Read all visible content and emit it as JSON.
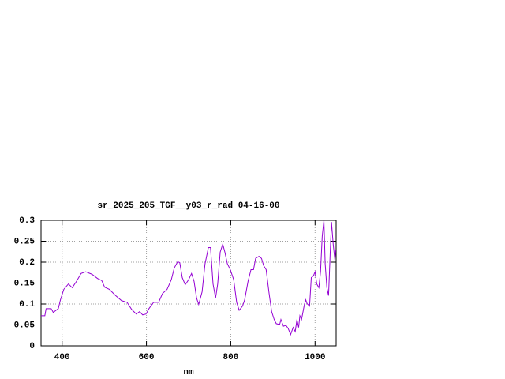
{
  "chart_data": {
    "type": "line",
    "title": "sr_2025_205_TGF__y03_r_rad 04-16-00",
    "x_label": "nm",
    "xlim": [
      350,
      1050
    ],
    "xticks": [
      400,
      600,
      800,
      1000
    ],
    "ylim": [
      0,
      0.3
    ],
    "yticks": [
      0,
      0.05,
      0.1,
      0.15,
      0.2,
      0.25,
      0.3
    ],
    "grid": true,
    "series": [
      {
        "color": "#9400d3",
        "x": [
          350,
          359,
          362,
          374,
          379,
          391,
          396,
          404,
          415,
          424,
          434,
          445,
          456,
          471,
          484,
          494,
          501,
          512,
          527,
          541,
          554,
          565,
          576,
          584,
          591,
          599,
          606,
          617,
          629,
          638,
          649,
          659,
          666,
          674,
          679,
          685,
          692,
          700,
          707,
          713,
          719,
          724,
          732,
          739,
          747,
          752,
          758,
          764,
          769,
          775,
          781,
          786,
          792,
          799,
          807,
          814,
          820,
          828,
          833,
          841,
          848,
          854,
          859,
          867,
          873,
          878,
          884,
          891,
          897,
          903,
          908,
          916,
          919,
          925,
          931,
          936,
          942,
          948,
          953,
          957,
          961,
          964,
          968,
          974,
          978,
          981,
          987,
          991,
          996,
          1000,
          1004,
          1009,
          1013,
          1017,
          1021,
          1024,
          1028,
          1032,
          1036,
          1039,
          1043,
          1047,
          1049
        ],
        "values": [
          0.072,
          0.072,
          0.089,
          0.089,
          0.08,
          0.089,
          0.11,
          0.135,
          0.148,
          0.139,
          0.154,
          0.173,
          0.177,
          0.171,
          0.161,
          0.156,
          0.14,
          0.135,
          0.12,
          0.108,
          0.104,
          0.087,
          0.076,
          0.082,
          0.074,
          0.076,
          0.089,
          0.104,
          0.104,
          0.125,
          0.135,
          0.158,
          0.186,
          0.201,
          0.199,
          0.163,
          0.146,
          0.158,
          0.173,
          0.154,
          0.114,
          0.099,
          0.129,
          0.196,
          0.235,
          0.235,
          0.148,
          0.114,
          0.148,
          0.224,
          0.243,
          0.224,
          0.196,
          0.182,
          0.158,
          0.104,
          0.085,
          0.095,
          0.11,
          0.154,
          0.182,
          0.182,
          0.209,
          0.214,
          0.209,
          0.192,
          0.182,
          0.125,
          0.082,
          0.063,
          0.053,
          0.051,
          0.063,
          0.047,
          0.049,
          0.042,
          0.027,
          0.044,
          0.034,
          0.063,
          0.044,
          0.072,
          0.063,
          0.095,
          0.11,
          0.101,
          0.095,
          0.163,
          0.167,
          0.177,
          0.148,
          0.139,
          0.177,
          0.262,
          0.3,
          0.196,
          0.139,
          0.12,
          0.224,
          0.296,
          0.243,
          0.205,
          0.228
        ]
      }
    ]
  }
}
